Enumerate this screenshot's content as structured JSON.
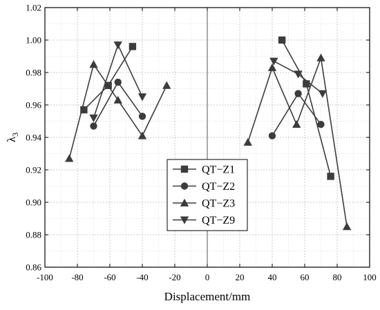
{
  "chart_data": {
    "type": "line",
    "xlabel": "Displacement/mm",
    "ylabel_main": "λ",
    "ylabel_sub": "3",
    "xlim": [
      -100,
      100
    ],
    "ylim": [
      0.86,
      1.02
    ],
    "xticks": [
      -100,
      -80,
      -60,
      -40,
      -20,
      0,
      20,
      40,
      60,
      80,
      100
    ],
    "yticks": [
      0.86,
      0.88,
      0.9,
      0.92,
      0.94,
      0.96,
      0.98,
      1.0,
      1.02
    ],
    "xtick_labels": [
      "-100",
      "-80",
      "-60",
      "-40",
      "-20",
      "0",
      "20",
      "40",
      "60",
      "80",
      "100"
    ],
    "ytick_labels": [
      "0.86",
      "0.88",
      "0.90",
      "0.92",
      "0.94",
      "0.96",
      "0.98",
      "1.00",
      "1.02"
    ],
    "grid": true,
    "zero_line": true,
    "legend_position": "center",
    "line_color": "#3c3c3c",
    "series": [
      {
        "name": "QT−Z1",
        "marker": "square",
        "segments": [
          [
            [
              -76,
              0.957
            ],
            [
              -61,
              0.972
            ],
            [
              -46,
              0.996
            ]
          ],
          [
            [
              46,
              1.0
            ],
            [
              61,
              0.973
            ],
            [
              76,
              0.916
            ]
          ]
        ]
      },
      {
        "name": "QT−Z2",
        "marker": "circle",
        "segments": [
          [
            [
              -70,
              0.947
            ],
            [
              -55,
              0.974
            ],
            [
              -40,
              0.953
            ]
          ],
          [
            [
              40,
              0.941
            ],
            [
              56,
              0.967
            ],
            [
              70,
              0.948
            ]
          ]
        ]
      },
      {
        "name": "QT−Z3",
        "marker": "triangle-up",
        "segments": [
          [
            [
              -85,
              0.927
            ],
            [
              -70,
              0.985
            ],
            [
              -55,
              0.963
            ],
            [
              -40,
              0.941
            ],
            [
              -25,
              0.972
            ]
          ],
          [
            [
              25,
              0.937
            ],
            [
              40,
              0.983
            ],
            [
              55,
              0.948
            ],
            [
              70,
              0.989
            ],
            [
              86,
              0.885
            ]
          ]
        ]
      },
      {
        "name": "QT−Z9",
        "marker": "triangle-down",
        "segments": [
          [
            [
              -70,
              0.952
            ],
            [
              -55,
              0.997
            ],
            [
              -40,
              0.965
            ]
          ],
          [
            [
              41,
              0.987
            ],
            [
              56,
              0.979
            ],
            [
              71,
              0.967
            ]
          ]
        ]
      }
    ]
  }
}
